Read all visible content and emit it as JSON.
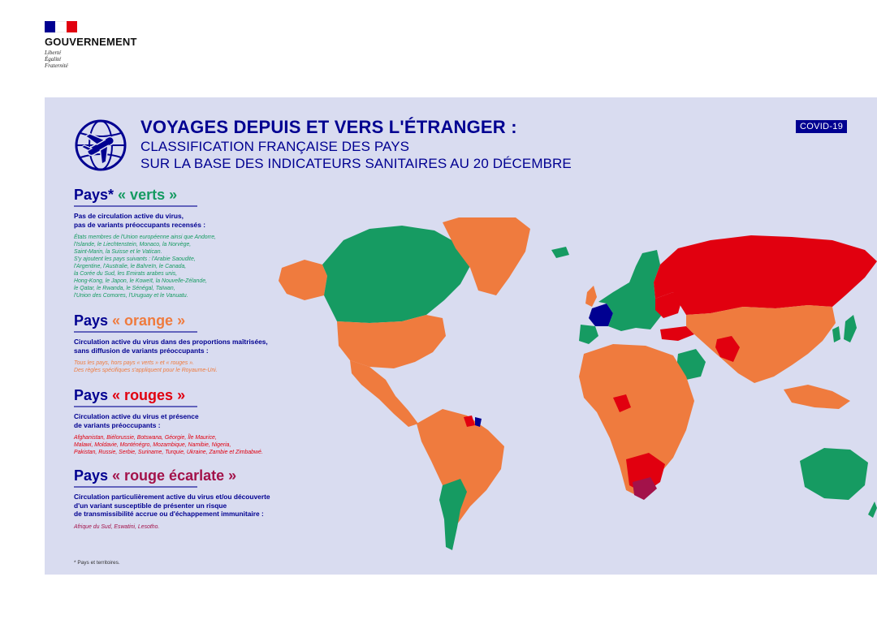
{
  "logo": {
    "name": "GOUVERNEMENT",
    "motto": [
      "Liberté",
      "Égalité",
      "Fraternité"
    ]
  },
  "header": {
    "title": "VOYAGES DEPUIS ET VERS L'ÉTRANGER :",
    "subtitle_1": "CLASSIFICATION FRANÇAISE DES PAYS",
    "subtitle_2": "SUR LA BASE DES INDICATEURS SANITAIRES AU 20 DÉCEMBRE",
    "badge": "COVID-19"
  },
  "categories": [
    {
      "prefix": "Pays* ",
      "name": "« verts »",
      "color": "#169b62",
      "description": [
        "Pas de circulation active du virus,",
        "pas de variants préoccupants recensés :"
      ],
      "list": [
        "États membres de l'Union européenne ainsi que Andorre,",
        "l'Islande, le Liechtenstein, Monaco, la Norvège,",
        "Saint-Marin, la Suisse et le Vatican.",
        "S'y ajoutent les pays suivants : l'Arabie Saoudite,",
        "l'Argentine, l'Australie, le Bahreïn, le Canada,",
        "la Corée du Sud, les Emirats arabes unis,",
        "Hong-Kong, le Japon, le Koweït, la Nouvelle-Zélande,",
        "le Qatar, le Rwanda, le Sénégal, Taïwan,",
        "l'Union des Comores, l'Uruguay et le Vanuatu."
      ]
    },
    {
      "prefix": "Pays ",
      "name": "« orange »",
      "color": "#ef7b3e",
      "description": [
        "Circulation active du virus dans des proportions maîtrisées,",
        "sans diffusion de variants préoccupants :"
      ],
      "list": [
        "Tous les pays, hors pays « verts » et « rouges ».",
        "Des règles spécifiques s'appliquent pour le Royaume-Uni."
      ]
    },
    {
      "prefix": "Pays ",
      "name": "« rouges »",
      "color": "#e1000f",
      "description": [
        "Circulation active du virus et présence",
        "de variants préoccupants :"
      ],
      "list": [
        "Afghanistan, Biélorussie, Botswana, Géorgie, Île Maurice,",
        "Malawi, Moldavie, Monténégro, Mozambique, Namibie, Nigeria,",
        "Pakistan, Russie, Serbie, Suriname, Turquie, Ukraine, Zambie et Zimbabwé."
      ]
    },
    {
      "prefix": "Pays ",
      "name": "« rouge écarlate »",
      "color": "#a3124a",
      "description": [
        "Circulation particulièrement active du virus et/ou découverte",
        "d'un variant susceptible de présenter un risque",
        "de transmissibilité accrue ou d'échappement immunitaire :"
      ],
      "list": [
        "Afrique du Sud, Eswatini, Lesotho."
      ]
    }
  ],
  "footnote": "* Pays et territoires.",
  "map_colors": {
    "green": "#169b62",
    "orange": "#ef7b3e",
    "red": "#e1000f",
    "scarlet": "#a3124a",
    "france": "#000091",
    "background": "#d9dcf0"
  }
}
